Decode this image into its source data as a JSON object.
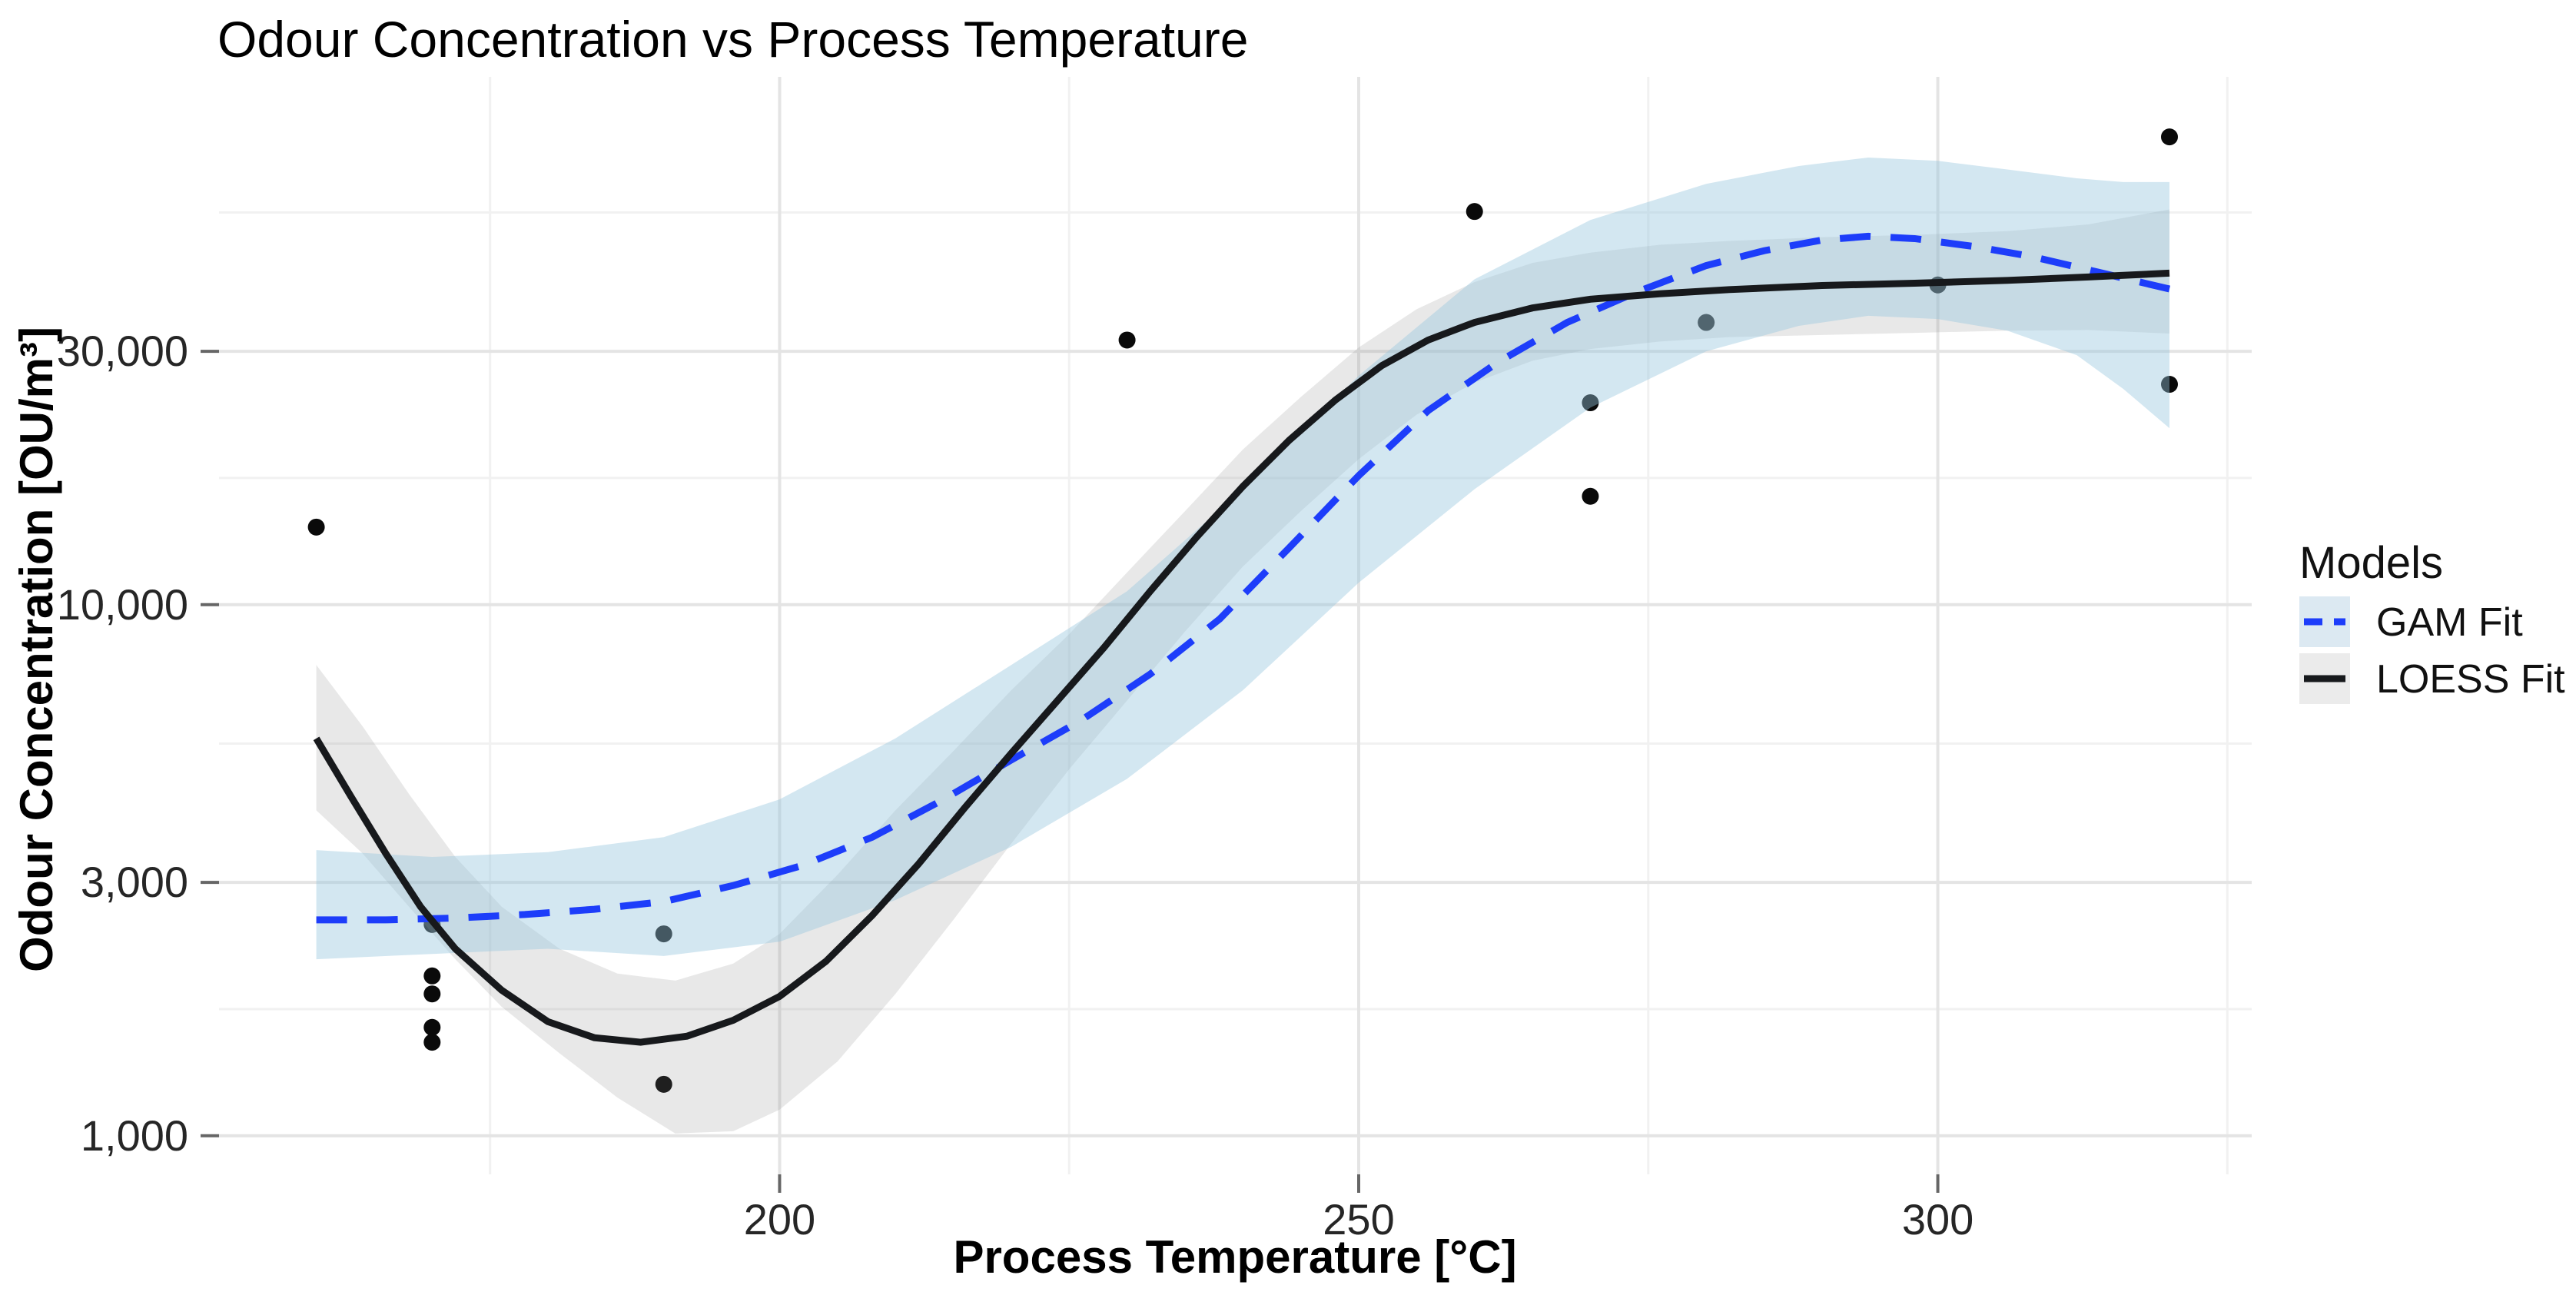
{
  "page": {
    "background": "#ffffff"
  },
  "chart_data": {
    "type": "scatter",
    "title": "Odour Concentration vs Process Temperature",
    "xlabel": "Process Temperature [°C]",
    "ylabel": "Odour Concentration [OU/m³]",
    "x_axis": {
      "lim": [
        151.6,
        327.1
      ],
      "major_ticks": [
        200,
        250,
        300
      ],
      "tick_labels": [
        "200",
        "250",
        "300"
      ],
      "minor_ticks": [
        175,
        225,
        275,
        325
      ]
    },
    "y_axis": {
      "scale": "log10",
      "lim": [
        846,
        98600
      ],
      "major_ticks": [
        1000,
        3000,
        10000,
        30000
      ],
      "tick_labels": [
        "1,000",
        "3,000",
        "10,000",
        "30,000"
      ],
      "minor_ticks": [
        1732,
        5477,
        17321,
        54772
      ]
    },
    "grid": {
      "major_color": "#e4e4e4",
      "minor_color": "#f1f1f1",
      "on": true
    },
    "points": {
      "color": "#0a0a0a",
      "radius_px": 11,
      "data": [
        [
          160,
          14000
        ],
        [
          170,
          2500
        ],
        [
          170,
          2000
        ],
        [
          170,
          1850
        ],
        [
          170,
          1600
        ],
        [
          170,
          1500
        ],
        [
          190,
          2400
        ],
        [
          190,
          1250
        ],
        [
          230,
          31500
        ],
        [
          260,
          55000
        ],
        [
          270,
          24000
        ],
        [
          270,
          16000
        ],
        [
          280,
          34000
        ],
        [
          300,
          40000
        ],
        [
          320,
          76000
        ],
        [
          320,
          26000
        ]
      ]
    },
    "series": [
      {
        "name": "GAM Fit",
        "line_style": "dashed",
        "color": "#1d3dfa",
        "band_color": "rgba(150,198,222,0.42)",
        "key_fill": "#dce9f2",
        "line": [
          [
            160,
            2550
          ],
          [
            166,
            2550
          ],
          [
            172,
            2570
          ],
          [
            178,
            2610
          ],
          [
            184,
            2670
          ],
          [
            190,
            2760
          ],
          [
            196,
            2960
          ],
          [
            202,
            3230
          ],
          [
            208,
            3650
          ],
          [
            214,
            4280
          ],
          [
            220,
            5100
          ],
          [
            226,
            6050
          ],
          [
            232,
            7400
          ],
          [
            238,
            9400
          ],
          [
            244,
            12800
          ],
          [
            250,
            17500
          ],
          [
            256,
            23200
          ],
          [
            262,
            28600
          ],
          [
            268,
            34000
          ],
          [
            274,
            38800
          ],
          [
            280,
            43500
          ],
          [
            285,
            46400
          ],
          [
            290,
            48600
          ],
          [
            294,
            49400
          ],
          [
            298,
            48900
          ],
          [
            303,
            47300
          ],
          [
            308,
            45300
          ],
          [
            314,
            42200
          ],
          [
            320,
            39300
          ]
        ],
        "band": [
          [
            160,
            2150,
            3450
          ],
          [
            170,
            2200,
            3350
          ],
          [
            180,
            2250,
            3420
          ],
          [
            190,
            2180,
            3650
          ],
          [
            200,
            2320,
            4300
          ],
          [
            210,
            2780,
            5600
          ],
          [
            220,
            3500,
            7700
          ],
          [
            230,
            4700,
            10600
          ],
          [
            240,
            6900,
            16500
          ],
          [
            250,
            11000,
            27000
          ],
          [
            260,
            16500,
            41000
          ],
          [
            270,
            23500,
            53000
          ],
          [
            280,
            30000,
            62000
          ],
          [
            288,
            33500,
            67000
          ],
          [
            294,
            35000,
            69500
          ],
          [
            300,
            34500,
            68500
          ],
          [
            306,
            32800,
            66000
          ],
          [
            312,
            29500,
            63500
          ],
          [
            316,
            25500,
            62500
          ],
          [
            320,
            21500,
            62500
          ]
        ]
      },
      {
        "name": "LOESS Fit",
        "line_style": "solid",
        "color": "#17191c",
        "band_color": "rgba(127,127,127,0.18)",
        "key_fill": "#ebebeb",
        "line": [
          [
            160,
            5600
          ],
          [
            163,
            4350
          ],
          [
            166,
            3400
          ],
          [
            169,
            2700
          ],
          [
            172,
            2250
          ],
          [
            176,
            1880
          ],
          [
            180,
            1640
          ],
          [
            184,
            1530
          ],
          [
            188,
            1500
          ],
          [
            192,
            1540
          ],
          [
            196,
            1650
          ],
          [
            200,
            1830
          ],
          [
            204,
            2130
          ],
          [
            208,
            2600
          ],
          [
            212,
            3250
          ],
          [
            216,
            4150
          ],
          [
            220,
            5250
          ],
          [
            224,
            6600
          ],
          [
            228,
            8300
          ],
          [
            232,
            10600
          ],
          [
            236,
            13400
          ],
          [
            240,
            16700
          ],
          [
            244,
            20400
          ],
          [
            248,
            24300
          ],
          [
            252,
            28200
          ],
          [
            256,
            31500
          ],
          [
            260,
            34000
          ],
          [
            265,
            36200
          ],
          [
            270,
            37600
          ],
          [
            276,
            38500
          ],
          [
            282,
            39200
          ],
          [
            290,
            39900
          ],
          [
            298,
            40300
          ],
          [
            306,
            40800
          ],
          [
            313,
            41400
          ],
          [
            320,
            42100
          ]
        ],
        "band": [
          [
            160,
            4100,
            7700
          ],
          [
            164,
            3400,
            5900
          ],
          [
            168,
            2700,
            4400
          ],
          [
            172,
            2150,
            3350
          ],
          [
            176,
            1750,
            2700
          ],
          [
            181,
            1430,
            2250
          ],
          [
            186,
            1180,
            2020
          ],
          [
            191,
            1010,
            1960
          ],
          [
            196,
            1020,
            2110
          ],
          [
            200,
            1120,
            2400
          ],
          [
            205,
            1380,
            3100
          ],
          [
            210,
            1850,
            4100
          ],
          [
            215,
            2550,
            5300
          ],
          [
            220,
            3550,
            6900
          ],
          [
            225,
            4900,
            8800
          ],
          [
            230,
            6600,
            11500
          ],
          [
            235,
            8900,
            15000
          ],
          [
            240,
            11800,
            19600
          ],
          [
            245,
            15000,
            24600
          ],
          [
            250,
            18800,
            30500
          ],
          [
            255,
            22800,
            36000
          ],
          [
            260,
            26200,
            40500
          ],
          [
            265,
            28800,
            44000
          ],
          [
            270,
            30300,
            46000
          ],
          [
            276,
            31300,
            47600
          ],
          [
            282,
            31900,
            48400
          ],
          [
            290,
            32200,
            49200
          ],
          [
            298,
            32500,
            49700
          ],
          [
            306,
            32800,
            50500
          ],
          [
            313,
            32900,
            52000
          ],
          [
            320,
            32400,
            55500
          ]
        ]
      }
    ],
    "legend": {
      "title": "Models",
      "position": "right"
    }
  }
}
